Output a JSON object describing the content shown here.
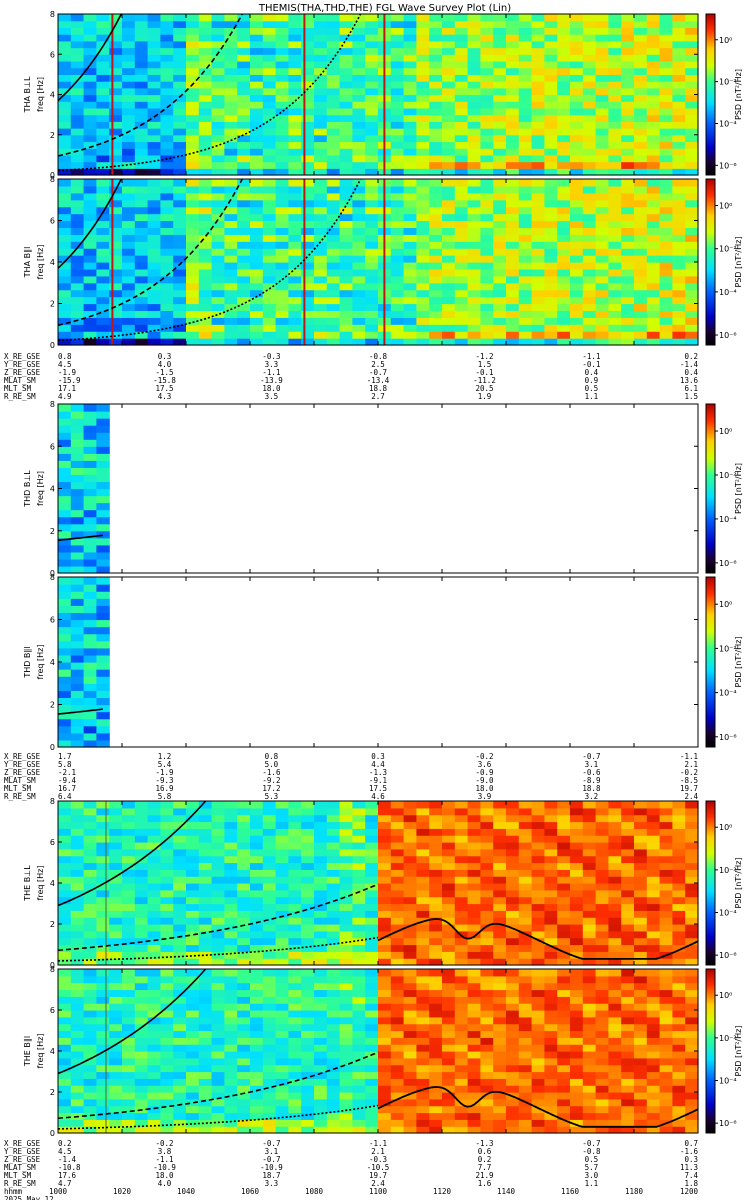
{
  "title": "THEMIS(THA,THD,THE) FGL Wave Survey Plot (Lin)",
  "colorbar": {
    "label": "PSD [nT²/Hz]",
    "ticks": [
      "10⁰",
      "10⁻²",
      "10⁻⁴",
      "10⁻⁶"
    ]
  },
  "chart_data": {
    "type": "heatmap",
    "x_range": [
      1000,
      1200
    ],
    "x_ticks": [
      1000,
      1020,
      1040,
      1060,
      1080,
      1100,
      1120,
      1140,
      1160,
      1180,
      1200
    ],
    "time_label": "hhmm",
    "date_label": "2025 May 12",
    "yticks": [
      "0",
      "2",
      "4",
      "6",
      "8"
    ],
    "ylim": [
      0,
      8
    ],
    "panels": [
      {
        "label": "THA B⊥L",
        "ylabel": "freq [Hz]",
        "regime": "tha"
      },
      {
        "label": "THA B∥l",
        "ylabel": "freq [Hz]",
        "regime": "tha"
      },
      {
        "label": "THD B⊥L",
        "ylabel": "freq [Hz]",
        "regime": "thd"
      },
      {
        "label": "THD B∥l",
        "ylabel": "freq [Hz]",
        "regime": "thd"
      },
      {
        "label": "THE B⊥L",
        "ylabel": "freq [Hz]",
        "regime": "the"
      },
      {
        "label": "THE B∥l",
        "ylabel": "freq [Hz]",
        "regime": "the"
      }
    ],
    "ephemeris": [
      {
        "names": [
          "X_RE_GSE",
          "Y_RE_GSE",
          "Z_RE_GSE",
          "MLAT_SM",
          "MLT_SM",
          "R_RE_SM"
        ],
        "values": [
          [
            "0.8",
            "4.5",
            "-1.9",
            "-15.9",
            "17.1",
            "4.9"
          ],
          [
            "0.3",
            "4.0",
            "-1.5",
            "-15.8",
            "17.5",
            "4.3"
          ],
          [
            "-0.3",
            "3.3",
            "-1.1",
            "-13.9",
            "18.0",
            "3.5"
          ],
          [
            "-0.8",
            "2.5",
            "-0.7",
            "-13.4",
            "18.8",
            "2.7"
          ],
          [
            "-1.2",
            "1.5",
            "-0.1",
            "-11.2",
            "20.5",
            "1.9"
          ],
          [
            "-1.1",
            "-0.1",
            "0.4",
            "0.9",
            "0.5",
            "1.1"
          ],
          [
            "0.2",
            "-1.4",
            "0.4",
            "13.6",
            "6.1",
            "1.5"
          ]
        ]
      },
      {
        "names": [
          "X_RE_GSE",
          "Y_RE_GSE",
          "Z_RE_GSE",
          "MLAT_SM",
          "MLT_SM",
          "R_RE_SM"
        ],
        "values": [
          [
            "1.7",
            "5.8",
            "-2.1",
            "-9.4",
            "16.7",
            "6.4"
          ],
          [
            "1.2",
            "5.4",
            "-1.9",
            "-9.3",
            "16.9",
            "5.8"
          ],
          [
            "0.8",
            "5.0",
            "-1.6",
            "-9.2",
            "17.2",
            "5.3"
          ],
          [
            "0.3",
            "4.4",
            "-1.3",
            "-9.1",
            "17.5",
            "4.6"
          ],
          [
            "-0.2",
            "3.6",
            "-0.9",
            "-9.0",
            "18.0",
            "3.9"
          ],
          [
            "-0.7",
            "3.1",
            "-0.6",
            "-8.9",
            "18.8",
            "3.2"
          ],
          [
            "-1.1",
            "2.1",
            "-0.2",
            "-8.5",
            "19.7",
            "2.4"
          ]
        ]
      },
      {
        "names": [
          "X_RE_GSE",
          "Y_RE_GSE",
          "Z_RE_GSE",
          "MLAT_SM",
          "MLT_SM",
          "R_RE_SM"
        ],
        "values": [
          [
            "0.2",
            "4.5",
            "-1.4",
            "-10.8",
            "17.6",
            "4.7"
          ],
          [
            "-0.2",
            "3.8",
            "-1.1",
            "-10.9",
            "18.0",
            "4.0"
          ],
          [
            "-0.7",
            "3.1",
            "-0.7",
            "-10.9",
            "18.7",
            "3.3"
          ],
          [
            "-1.1",
            "2.1",
            "-0.3",
            "-10.5",
            "19.7",
            "2.4"
          ],
          [
            "-1.3",
            "0.6",
            "0.2",
            "7.7",
            "21.9",
            "1.6"
          ],
          [
            "-0.7",
            "-0.8",
            "0.5",
            "5.7",
            "3.0",
            "1.1"
          ],
          [
            "0.7",
            "-1.6",
            "0.3",
            "11.3",
            "7.4",
            "1.8"
          ]
        ]
      }
    ]
  }
}
